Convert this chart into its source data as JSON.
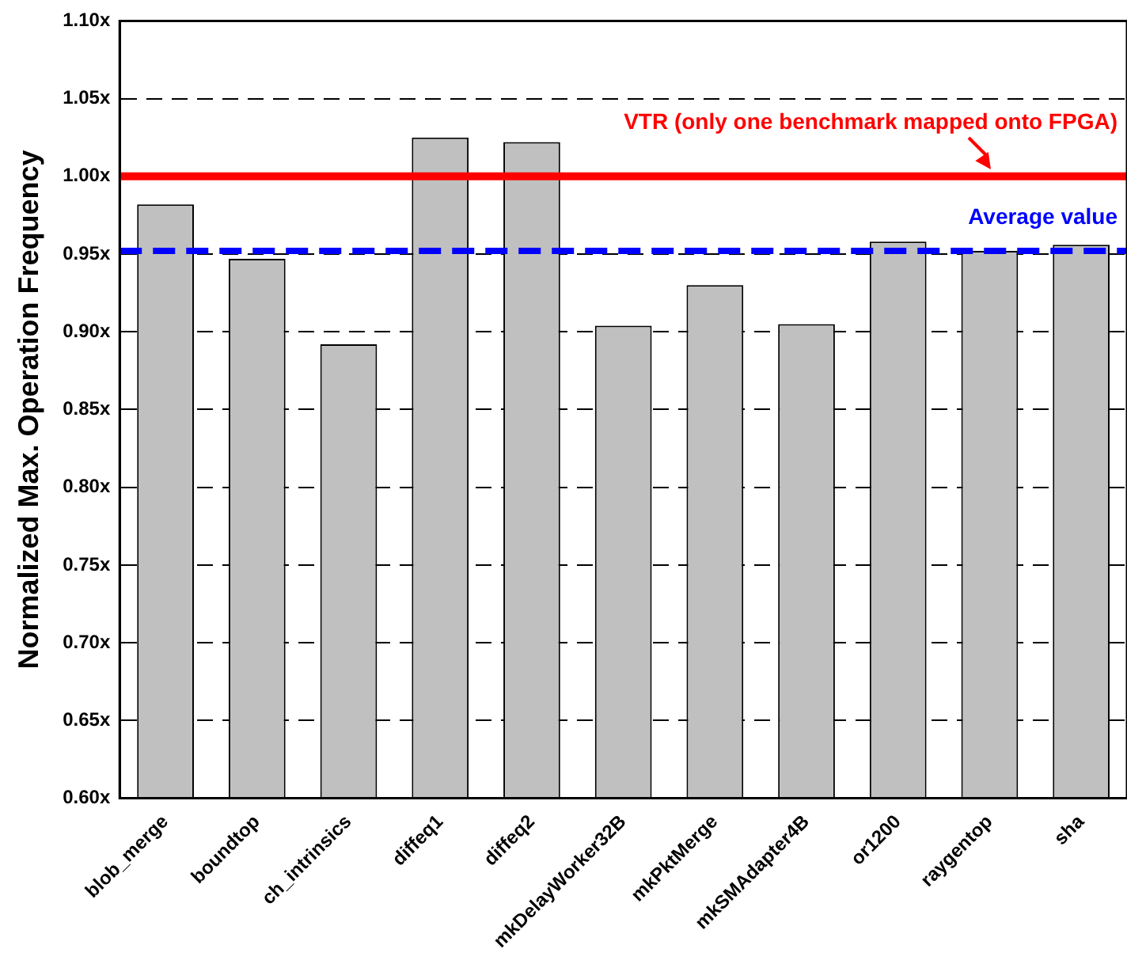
{
  "chart_data": {
    "type": "bar",
    "ylabel": "Normalized Max. Operation Frequency",
    "categories": [
      "blob_merge",
      "boundtop",
      "ch_intrinsics",
      "diffeq1",
      "diffeq2",
      "mkDelayWorker32B",
      "mkPktMerge",
      "mkSMAdapter4B",
      "or1200",
      "raygentop",
      "sha"
    ],
    "values": [
      0.982,
      0.947,
      0.892,
      1.025,
      1.022,
      0.904,
      0.93,
      0.905,
      0.958,
      0.952,
      0.956
    ],
    "color": "#c0c0c0",
    "ylim": [
      0.6,
      1.1
    ],
    "yticks": [
      {
        "value": 0.6,
        "label": "0.60x"
      },
      {
        "value": 0.65,
        "label": "0.65x"
      },
      {
        "value": 0.7,
        "label": "0.70x"
      },
      {
        "value": 0.75,
        "label": "0.75x"
      },
      {
        "value": 0.8,
        "label": "0.80x"
      },
      {
        "value": 0.85,
        "label": "0.85x"
      },
      {
        "value": 0.9,
        "label": "0.90x"
      },
      {
        "value": 0.95,
        "label": "0.95x"
      },
      {
        "value": 1.0,
        "label": "1.00x"
      },
      {
        "value": 1.05,
        "label": "1.05x"
      },
      {
        "value": 1.1,
        "label": "1.10x"
      }
    ],
    "grid": "y",
    "legend": false,
    "ref_lines": [
      {
        "axis": "y",
        "value": 1.0,
        "label": "VTR (only one benchmark mapped onto FPGA)",
        "color": "#ff0000",
        "line_style": "solid"
      },
      {
        "axis": "y",
        "value": 0.952,
        "label": "Average value",
        "color": "#0000ff",
        "line_style": "dashed"
      }
    ]
  }
}
